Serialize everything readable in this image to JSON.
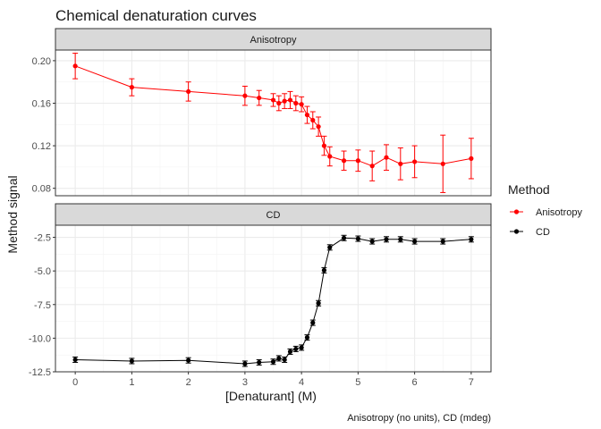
{
  "chart_data": {
    "type": "line",
    "title": "Chemical denaturation curves",
    "xlabel": "[Denaturant] (M)",
    "ylabel": "Method signal",
    "caption": "Anisotropy (no units), CD (mdeg)",
    "legend": {
      "title": "Method",
      "position": "right"
    },
    "grid": true,
    "x_ticks": [
      "0",
      "1",
      "2",
      "3",
      "4",
      "5",
      "6",
      "7"
    ],
    "xlim": [
      -0.35,
      7.35
    ],
    "panels": [
      {
        "strip": "Anisotropy",
        "color": "#ff0000",
        "ylim": [
          0.073,
          0.21
        ],
        "y_ticks": [
          "0.08",
          "0.12",
          "0.16",
          "0.20"
        ],
        "points": [
          {
            "x": 0,
            "y": 0.195,
            "err": 0.012
          },
          {
            "x": 1,
            "y": 0.175,
            "err": 0.008
          },
          {
            "x": 2,
            "y": 0.171,
            "err": 0.009
          },
          {
            "x": 3,
            "y": 0.167,
            "err": 0.009
          },
          {
            "x": 3.25,
            "y": 0.165,
            "err": 0.007
          },
          {
            "x": 3.5,
            "y": 0.163,
            "err": 0.006
          },
          {
            "x": 3.6,
            "y": 0.16,
            "err": 0.007
          },
          {
            "x": 3.7,
            "y": 0.162,
            "err": 0.007
          },
          {
            "x": 3.8,
            "y": 0.163,
            "err": 0.008
          },
          {
            "x": 3.9,
            "y": 0.16,
            "err": 0.007
          },
          {
            "x": 4.0,
            "y": 0.159,
            "err": 0.007
          },
          {
            "x": 4.1,
            "y": 0.149,
            "err": 0.008
          },
          {
            "x": 4.2,
            "y": 0.144,
            "err": 0.008
          },
          {
            "x": 4.3,
            "y": 0.138,
            "err": 0.009
          },
          {
            "x": 4.4,
            "y": 0.12,
            "err": 0.009
          },
          {
            "x": 4.5,
            "y": 0.11,
            "err": 0.009
          },
          {
            "x": 4.75,
            "y": 0.106,
            "err": 0.009
          },
          {
            "x": 5.0,
            "y": 0.106,
            "err": 0.01
          },
          {
            "x": 5.25,
            "y": 0.101,
            "err": 0.014
          },
          {
            "x": 5.5,
            "y": 0.109,
            "err": 0.012
          },
          {
            "x": 5.75,
            "y": 0.103,
            "err": 0.015
          },
          {
            "x": 6.0,
            "y": 0.105,
            "err": 0.015
          },
          {
            "x": 6.5,
            "y": 0.103,
            "err": 0.027
          },
          {
            "x": 7.0,
            "y": 0.108,
            "err": 0.019
          }
        ]
      },
      {
        "strip": "CD",
        "color": "#000000",
        "ylim": [
          -12.5,
          -1.6
        ],
        "y_ticks": [
          "-12.5",
          "-10.0",
          "-7.5",
          "-5.0",
          "-2.5"
        ],
        "points": [
          {
            "x": 0,
            "y": -11.6,
            "err": 0.2
          },
          {
            "x": 1,
            "y": -11.7,
            "err": 0.2
          },
          {
            "x": 2,
            "y": -11.65,
            "err": 0.2
          },
          {
            "x": 3,
            "y": -11.9,
            "err": 0.2
          },
          {
            "x": 3.25,
            "y": -11.8,
            "err": 0.2
          },
          {
            "x": 3.5,
            "y": -11.75,
            "err": 0.2
          },
          {
            "x": 3.6,
            "y": -11.5,
            "err": 0.2
          },
          {
            "x": 3.7,
            "y": -11.6,
            "err": 0.2
          },
          {
            "x": 3.8,
            "y": -11.0,
            "err": 0.2
          },
          {
            "x": 3.9,
            "y": -10.8,
            "err": 0.2
          },
          {
            "x": 4.0,
            "y": -10.7,
            "err": 0.2
          },
          {
            "x": 4.1,
            "y": -9.95,
            "err": 0.2
          },
          {
            "x": 4.2,
            "y": -8.85,
            "err": 0.2
          },
          {
            "x": 4.3,
            "y": -7.4,
            "err": 0.2
          },
          {
            "x": 4.4,
            "y": -4.95,
            "err": 0.2
          },
          {
            "x": 4.5,
            "y": -3.25,
            "err": 0.2
          },
          {
            "x": 4.75,
            "y": -2.55,
            "err": 0.2
          },
          {
            "x": 5.0,
            "y": -2.6,
            "err": 0.2
          },
          {
            "x": 5.25,
            "y": -2.8,
            "err": 0.2
          },
          {
            "x": 5.5,
            "y": -2.65,
            "err": 0.2
          },
          {
            "x": 5.75,
            "y": -2.65,
            "err": 0.2
          },
          {
            "x": 6.0,
            "y": -2.8,
            "err": 0.2
          },
          {
            "x": 6.5,
            "y": -2.8,
            "err": 0.2
          },
          {
            "x": 7.0,
            "y": -2.65,
            "err": 0.2
          }
        ]
      }
    ],
    "series": [
      {
        "name": "Anisotropy",
        "color": "#ff0000"
      },
      {
        "name": "CD",
        "color": "#000000"
      }
    ]
  }
}
